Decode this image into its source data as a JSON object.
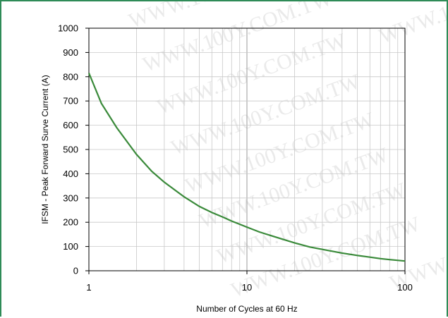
{
  "colors": {
    "frame": "#2e8b57",
    "curve": "#3a8a3a",
    "grid": "#c8c8c8",
    "axis": "#000000",
    "watermark": "#d0d0d0"
  },
  "watermark": "WWW.100Y.COM.TW",
  "chart_data": {
    "type": "line",
    "xlabel": "Number of Cycles at 60 Hz",
    "ylabel": "IFSM - Peak Forward Surve Current (A)",
    "xscale": "log",
    "xlim": [
      1,
      100
    ],
    "ylim": [
      0,
      1000
    ],
    "grid": true,
    "x_ticks": [
      1,
      10,
      100
    ],
    "x_tick_labels": [
      "1",
      "10",
      "100"
    ],
    "y_ticks": [
      0,
      100,
      200,
      300,
      400,
      500,
      600,
      700,
      800,
      900,
      1000
    ],
    "y_tick_labels": [
      "0",
      "100",
      "200",
      "300",
      "400",
      "500",
      "600",
      "700",
      "800",
      "900",
      "1000"
    ],
    "series": [
      {
        "x": [
          1,
          1.2,
          1.5,
          2,
          2.5,
          3,
          4,
          5,
          6,
          7,
          8,
          10,
          12,
          15,
          20,
          25,
          30,
          40,
          50,
          60,
          70,
          80,
          100
        ],
        "y": [
          815,
          690,
          590,
          480,
          410,
          365,
          305,
          265,
          240,
          222,
          205,
          180,
          160,
          140,
          115,
          98,
          88,
          73,
          63,
          56,
          50,
          46,
          40
        ]
      }
    ]
  }
}
